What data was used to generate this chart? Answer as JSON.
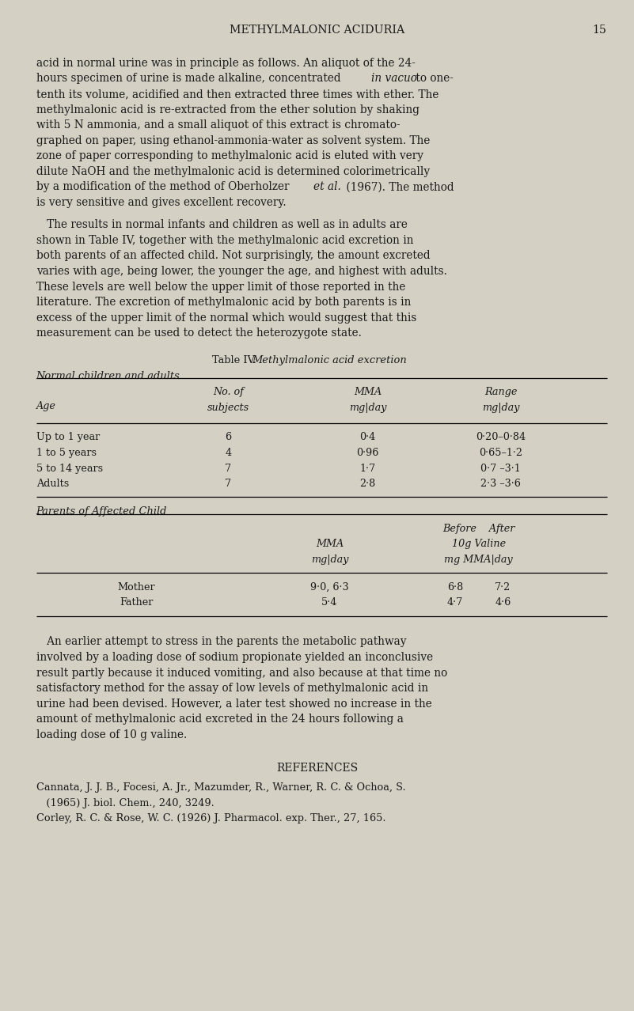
{
  "bg_color": "#d5d0c4",
  "page_width": 8.01,
  "page_height": 12.78,
  "header_title": "METHYLMALONIC ACIDURIA",
  "header_page": "15",
  "body_para1": [
    "acid in normal urine was in principle as follows. An aliquot of the 24-",
    "hours specimen of urine is made alkaline, concentrated in vacuo to one-",
    "tenth its volume, acidified and then extracted three times with ether. The",
    "methylmalonic acid is re-extracted from the ether solution by shaking",
    "with 5 N ammonia, and a small aliquot of this extract is chromato-",
    "graphed on paper, using ethanol-ammonia-water as solvent system. The",
    "zone of paper corresponding to methylmalonic acid is eluted with very",
    "dilute NaOH and the methylmalonic acid is determined colorimetrically",
    "by a modification of the method of Oberholzer et al. (1967). The method",
    "is very sensitive and gives excellent recovery."
  ],
  "body_para2": [
    "   The results in normal infants and children as well as in adults are",
    "shown in Table IV, together with the methylmalonic acid excretion in",
    "both parents of an affected child. Not surprisingly, the amount excreted",
    "varies with age, being lower, the younger the age, and highest with adults.",
    "These levels are well below the upper limit of those reported in the",
    "literature. The excretion of methylmalonic acid by both parents is in",
    "excess of the upper limit of the normal which would suggest that this",
    "measurement can be used to detect the heterozygote state."
  ],
  "table_rows": [
    [
      "Up to 1 year",
      "6",
      "0·4",
      "0·20–0·84"
    ],
    [
      "1 to 5 years",
      "4",
      "0·96",
      "0·65–1·2"
    ],
    [
      "5 to 14 years",
      "7",
      "1·7",
      "0·7 –3·1"
    ],
    [
      "Adults",
      "7",
      "2·8",
      "2·3 –3·6"
    ]
  ],
  "parents_rows": [
    [
      "Mother",
      "9·0, 6·3",
      "6·8",
      "7·2"
    ],
    [
      "Father",
      "5·4",
      "4·7",
      "4·6"
    ]
  ],
  "body_para3": [
    "   An earlier attempt to stress in the parents the metabolic pathway",
    "involved by a loading dose of sodium propionate yielded an inconclusive",
    "result partly because it induced vomiting, and also because at that time no",
    "satisfactory method for the assay of low levels of methylmalonic acid in",
    "urine had been devised. However, a later test showed no increase in the",
    "amount of methylmalonic acid excreted in the 24 hours following a",
    "loading dose of 10 g valine."
  ],
  "references": [
    "Cannata, J. J. B., Focesi, A. Jr., Mazumder, R., Warner, R. C. & Ochoa, S.",
    "   (1965) J. biol. Chem., 240, 3249.",
    "Corley, R. C. & Rose, W. C. (1926) J. Pharmacol. exp. Ther., 27, 165."
  ]
}
